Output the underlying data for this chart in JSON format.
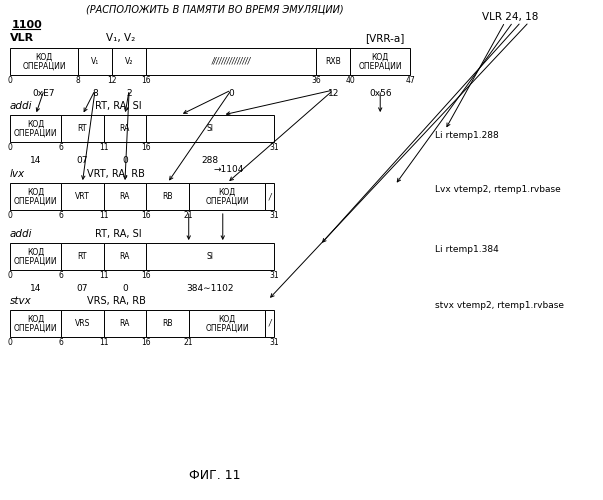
{
  "title_top": "(РАСПОЛОЖИТЬ В ПАМЯТИ ВО ВРЕМЯ ЭМУЛЯЦИИ)",
  "label_1100": "1100",
  "fig_caption": "ФИГ. 11",
  "bg_color": "#ffffff",
  "text_color": "#000000"
}
